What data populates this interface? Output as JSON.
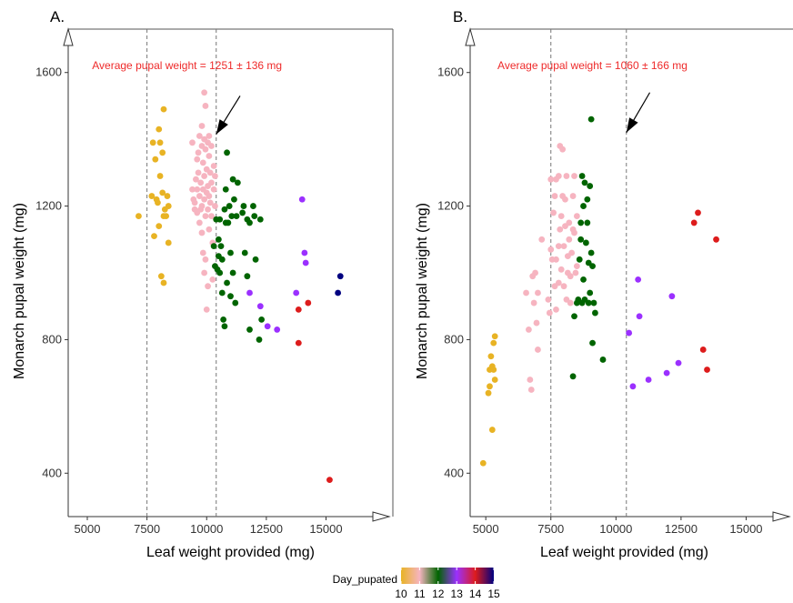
{
  "chart_data": [
    {
      "panel": "A.",
      "type": "scatter",
      "xlabel": "Leaf weight provided (mg)",
      "ylabel": "Monarch pupal weight (mg)",
      "xlim": [
        4200,
        17800
      ],
      "ylim": [
        270,
        1730
      ],
      "xticks": [
        5000,
        7500,
        10000,
        12500,
        15000
      ],
      "xtick_labels": [
        "5000",
        "7500",
        "10000",
        "12500",
        "15000"
      ],
      "yticks": [
        400,
        800,
        1200,
        1600
      ],
      "ytick_labels": [
        "400",
        "800",
        "1200",
        "1600"
      ],
      "vlines": [
        7500,
        10400
      ],
      "annotation": {
        "text": "Average pupal weight = 1251 ± 136 mg",
        "x": 5200,
        "y": 1610,
        "arrow_from": [
          11400,
          1530
        ],
        "arrow_to": [
          10400,
          1415
        ]
      },
      "series": [
        {
          "day": 10,
          "points": [
            [
              7150,
              1170
            ],
            [
              7700,
              1230
            ],
            [
              7750,
              1390
            ],
            [
              7800,
              1110
            ],
            [
              7850,
              1340
            ],
            [
              7900,
              1220
            ],
            [
              7950,
              1210
            ],
            [
              8000,
              1430
            ],
            [
              8000,
              1140
            ],
            [
              8050,
              1290
            ],
            [
              8050,
              1390
            ],
            [
              8100,
              990
            ],
            [
              8150,
              1360
            ],
            [
              8150,
              1240
            ],
            [
              8200,
              1170
            ],
            [
              8250,
              1190
            ],
            [
              8200,
              1490
            ],
            [
              8200,
              970
            ],
            [
              8300,
              1170
            ],
            [
              8350,
              1230
            ],
            [
              8400,
              1200
            ],
            [
              8400,
              1090
            ]
          ]
        },
        {
          "day": 11,
          "points": [
            [
              9400,
              1390
            ],
            [
              9400,
              1250
            ],
            [
              9450,
              1220
            ],
            [
              9500,
              1210
            ],
            [
              9500,
              1190
            ],
            [
              9550,
              1280
            ],
            [
              9600,
              1250
            ],
            [
              9600,
              1340
            ],
            [
              9600,
              1180
            ],
            [
              9650,
              1360
            ],
            [
              9650,
              1300
            ],
            [
              9700,
              1410
            ],
            [
              9700,
              1230
            ],
            [
              9700,
              1150
            ],
            [
              9750,
              1190
            ],
            [
              9750,
              1270
            ],
            [
              9800,
              1200
            ],
            [
              9800,
              1380
            ],
            [
              9800,
              1440
            ],
            [
              9800,
              1120
            ],
            [
              9850,
              1330
            ],
            [
              9850,
              1250
            ],
            [
              9850,
              1060
            ],
            [
              9900,
              1540
            ],
            [
              9900,
              1290
            ],
            [
              9900,
              1220
            ],
            [
              9900,
              1000
            ],
            [
              9900,
              1400
            ],
            [
              9950,
              1370
            ],
            [
              9950,
              1170
            ],
            [
              9950,
              1040
            ],
            [
              9950,
              1500
            ],
            [
              10000,
              1240
            ],
            [
              10000,
              1310
            ],
            [
              10000,
              890
            ],
            [
              10050,
              1390
            ],
            [
              10050,
              1260
            ],
            [
              10050,
              1190
            ],
            [
              10050,
              960
            ],
            [
              10100,
              1410
            ],
            [
              10100,
              1350
            ],
            [
              10100,
              1230
            ],
            [
              10100,
              1130
            ],
            [
              10150,
              1300
            ],
            [
              10150,
              1210
            ],
            [
              10200,
              1380
            ],
            [
              10200,
              1270
            ],
            [
              10200,
              1170
            ],
            [
              10250,
              1090
            ],
            [
              10250,
              980
            ],
            [
              10300,
              1250
            ],
            [
              10300,
              1320
            ],
            [
              10350,
              1200
            ],
            [
              10350,
              1290
            ],
            [
              10400,
              1160
            ]
          ]
        },
        {
          "day": 12,
          "points": [
            [
              10300,
              1080
            ],
            [
              10350,
              1020
            ],
            [
              10400,
              1160
            ],
            [
              10450,
              1010
            ],
            [
              10500,
              1050
            ],
            [
              10500,
              1100
            ],
            [
              10550,
              1160
            ],
            [
              10550,
              1000
            ],
            [
              10600,
              1080
            ],
            [
              10650,
              1040
            ],
            [
              10650,
              940
            ],
            [
              10700,
              860
            ],
            [
              10750,
              1190
            ],
            [
              10750,
              840
            ],
            [
              10800,
              1250
            ],
            [
              10800,
              1150
            ],
            [
              10850,
              1360
            ],
            [
              10850,
              970
            ],
            [
              10900,
              1150
            ],
            [
              10950,
              1200
            ],
            [
              11000,
              1060
            ],
            [
              11000,
              930
            ],
            [
              11050,
              1170
            ],
            [
              11100,
              1280
            ],
            [
              11100,
              1000
            ],
            [
              11150,
              1220
            ],
            [
              11200,
              910
            ],
            [
              11250,
              1170
            ],
            [
              11300,
              1270
            ],
            [
              11500,
              1180
            ],
            [
              11550,
              1200
            ],
            [
              11600,
              1060
            ],
            [
              11700,
              990
            ],
            [
              11700,
              1160
            ],
            [
              11800,
              1150
            ],
            [
              11800,
              830
            ],
            [
              11950,
              1200
            ],
            [
              12000,
              1170
            ],
            [
              12050,
              1040
            ],
            [
              12200,
              800
            ],
            [
              12250,
              1160
            ],
            [
              12300,
              860
            ]
          ]
        },
        {
          "day": 13,
          "points": [
            [
              11800,
              940
            ],
            [
              12250,
              900
            ],
            [
              12550,
              840
            ],
            [
              12950,
              830
            ],
            [
              13750,
              940
            ],
            [
              14000,
              1220
            ],
            [
              14100,
              1060
            ],
            [
              14150,
              1030
            ]
          ]
        },
        {
          "day": 14,
          "points": [
            [
              13850,
              890
            ],
            [
              13850,
              790
            ],
            [
              14250,
              910
            ],
            [
              15150,
              380
            ]
          ]
        },
        {
          "day": 15,
          "points": [
            [
              15500,
              940
            ],
            [
              15600,
              990
            ]
          ]
        }
      ]
    },
    {
      "panel": "B.",
      "type": "scatter",
      "xlabel": "Leaf weight provided (mg)",
      "ylabel": "Monarch pupal weight (mg)",
      "xlim": [
        4400,
        16800
      ],
      "ylim": [
        270,
        1730
      ],
      "xticks": [
        5000,
        7500,
        10000,
        12500,
        15000
      ],
      "xtick_labels": [
        "5000",
        "7500",
        "10000",
        "12500",
        "15000"
      ],
      "yticks": [
        400,
        800,
        1200,
        1600
      ],
      "ytick_labels": [
        "400",
        "800",
        "1200",
        "1600"
      ],
      "vlines": [
        7500,
        10400
      ],
      "annotation": {
        "text": "Average pupal weight = 1060 ± 166 mg",
        "x": 5450,
        "y": 1610,
        "arrow_from": [
          11300,
          1540
        ],
        "arrow_to": [
          10400,
          1420
        ]
      },
      "series": [
        {
          "day": 10,
          "points": [
            [
              4900,
              430
            ],
            [
              5100,
              640
            ],
            [
              5150,
              660
            ],
            [
              5150,
              710
            ],
            [
              5200,
              750
            ],
            [
              5250,
              720
            ],
            [
              5250,
              530
            ],
            [
              5300,
              790
            ],
            [
              5300,
              710
            ],
            [
              5350,
              680
            ],
            [
              5350,
              810
            ]
          ]
        },
        {
          "day": 11,
          "points": [
            [
              6550,
              940
            ],
            [
              6650,
              830
            ],
            [
              6700,
              680
            ],
            [
              6750,
              650
            ],
            [
              6800,
              990
            ],
            [
              6850,
              910
            ],
            [
              6900,
              1000
            ],
            [
              6950,
              850
            ],
            [
              7000,
              940
            ],
            [
              7000,
              770
            ],
            [
              7150,
              1100
            ],
            [
              7400,
              920
            ],
            [
              7450,
              880
            ],
            [
              7500,
              1070
            ],
            [
              7500,
              1280
            ],
            [
              7550,
              1040
            ],
            [
              7600,
              1180
            ],
            [
              7650,
              960
            ],
            [
              7650,
              1230
            ],
            [
              7700,
              1040
            ],
            [
              7700,
              1280
            ],
            [
              7700,
              890
            ],
            [
              7800,
              1080
            ],
            [
              7800,
              1290
            ],
            [
              7800,
              970
            ],
            [
              7850,
              1130
            ],
            [
              7850,
              1380
            ],
            [
              7900,
              1170
            ],
            [
              7900,
              1010
            ],
            [
              7950,
              1230
            ],
            [
              7950,
              1370
            ],
            [
              8000,
              1080
            ],
            [
              8000,
              960
            ],
            [
              8050,
              1220
            ],
            [
              8050,
              1140
            ],
            [
              8100,
              920
            ],
            [
              8100,
              1290
            ],
            [
              8150,
              1050
            ],
            [
              8150,
              1000
            ],
            [
              8200,
              1100
            ],
            [
              8200,
              1150
            ],
            [
              8250,
              910
            ],
            [
              8250,
              990
            ],
            [
              8300,
              1060
            ],
            [
              8350,
              1230
            ],
            [
              8350,
              1130
            ],
            [
              8400,
              1290
            ],
            [
              8400,
              1120
            ],
            [
              8450,
              1000
            ],
            [
              8500,
              1020
            ],
            [
              8500,
              1170
            ]
          ]
        },
        {
          "day": 12,
          "points": [
            [
              8350,
              690
            ],
            [
              8400,
              870
            ],
            [
              8500,
              910
            ],
            [
              8550,
              920
            ],
            [
              8600,
              1040
            ],
            [
              8650,
              1150
            ],
            [
              8650,
              1100
            ],
            [
              8700,
              1290
            ],
            [
              8700,
              910
            ],
            [
              8750,
              1200
            ],
            [
              8750,
              980
            ],
            [
              8800,
              1270
            ],
            [
              8800,
              920
            ],
            [
              8850,
              1090
            ],
            [
              8900,
              1220
            ],
            [
              8900,
              1150
            ],
            [
              8950,
              1030
            ],
            [
              8950,
              910
            ],
            [
              9000,
              1260
            ],
            [
              9000,
              940
            ],
            [
              9050,
              1460
            ],
            [
              9050,
              1060
            ],
            [
              9100,
              790
            ],
            [
              9100,
              1020
            ],
            [
              9150,
              910
            ],
            [
              9200,
              880
            ],
            [
              9500,
              740
            ]
          ]
        },
        {
          "day": 13,
          "points": [
            [
              10500,
              820
            ],
            [
              10650,
              660
            ],
            [
              10850,
              980
            ],
            [
              10900,
              870
            ],
            [
              11250,
              680
            ],
            [
              11950,
              700
            ],
            [
              12150,
              930
            ],
            [
              12400,
              730
            ]
          ]
        },
        {
          "day": 14,
          "points": [
            [
              13000,
              1150
            ],
            [
              13150,
              1180
            ],
            [
              13350,
              770
            ],
            [
              13500,
              710
            ],
            [
              13850,
              1100
            ]
          ]
        }
      ]
    }
  ],
  "legend": {
    "title": "Day_pupated",
    "ticks": [
      "10",
      "11",
      "12",
      "13",
      "14",
      "15"
    ],
    "colors": {
      "10": "#e8b324",
      "11": "#f6b4c0",
      "12": "#006400",
      "13": "#9b30ff",
      "14": "#dd1c1c",
      "15": "#000080"
    }
  }
}
